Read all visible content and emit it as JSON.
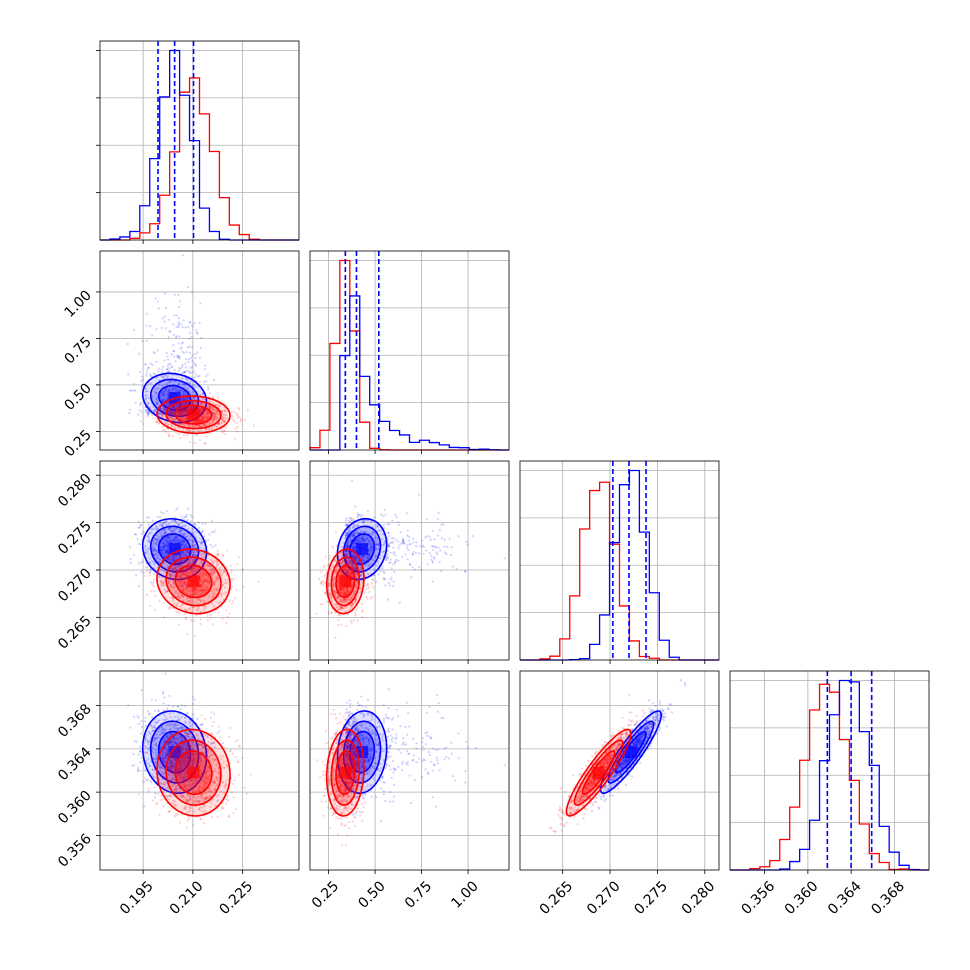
{
  "chart_data": {
    "type": "corner",
    "colors": {
      "blue": "#0000ff",
      "red": "#ff0000"
    },
    "grid": true,
    "parameters": [
      {
        "ticks": [
          0.195,
          0.21,
          0.225
        ],
        "tick_labels": [
          "0.195",
          "0.210",
          "0.225"
        ],
        "range": [
          0.182,
          0.242
        ]
      },
      {
        "ticks": [
          0.25,
          0.5,
          0.75,
          1.0
        ],
        "tick_labels": [
          "0.25",
          "0.50",
          "0.75",
          "1.00"
        ],
        "range": [
          0.15,
          1.22
        ]
      },
      {
        "ticks": [
          0.265,
          0.27,
          0.275,
          0.28
        ],
        "tick_labels": [
          "0.265",
          "0.270",
          "0.275",
          "0.280"
        ],
        "range": [
          0.2605,
          0.2815
        ]
      },
      {
        "ticks": [
          0.356,
          0.36,
          0.364,
          0.368
        ],
        "tick_labels": [
          "0.356",
          "0.360",
          "0.364",
          "0.368"
        ],
        "range": [
          0.3528,
          0.3712
        ]
      }
    ],
    "series": [
      {
        "color": "blue",
        "mean": [
          0.2045,
          0.43,
          0.2722,
          0.3637
        ],
        "sd": [
          0.0048,
          0.12,
          0.0016,
          0.0019
        ],
        "quantiles": [
          [
            0.1995,
            0.2045,
            0.2102
          ],
          [
            0.34,
            0.4,
            0.52
          ],
          [
            0.2703,
            0.272,
            0.2738
          ],
          [
            0.3618,
            0.364,
            0.3659
          ]
        ]
      },
      {
        "color": "red",
        "mean": [
          0.2102,
          0.34,
          0.2688,
          0.3618
        ],
        "sd": [
          0.0055,
          0.05,
          0.0017,
          0.002
        ]
      }
    ],
    "correlations": [
      {
        "pair": [
          0,
          2
        ],
        "blue": -0.1,
        "red": -0.1
      },
      {
        "pair": [
          1,
          2
        ],
        "blue": 0.15,
        "red": 0.1
      },
      {
        "pair": [
          2,
          3
        ],
        "blue": 0.9,
        "red": 0.9
      },
      {
        "pair": [
          0,
          1
        ],
        "blue": -0.15,
        "red": -0.05
      },
      {
        "pair": [
          0,
          3
        ],
        "blue": -0.1,
        "red": -0.05
      },
      {
        "pair": [
          1,
          3
        ],
        "blue": 0.1,
        "red": 0.1
      }
    ]
  }
}
